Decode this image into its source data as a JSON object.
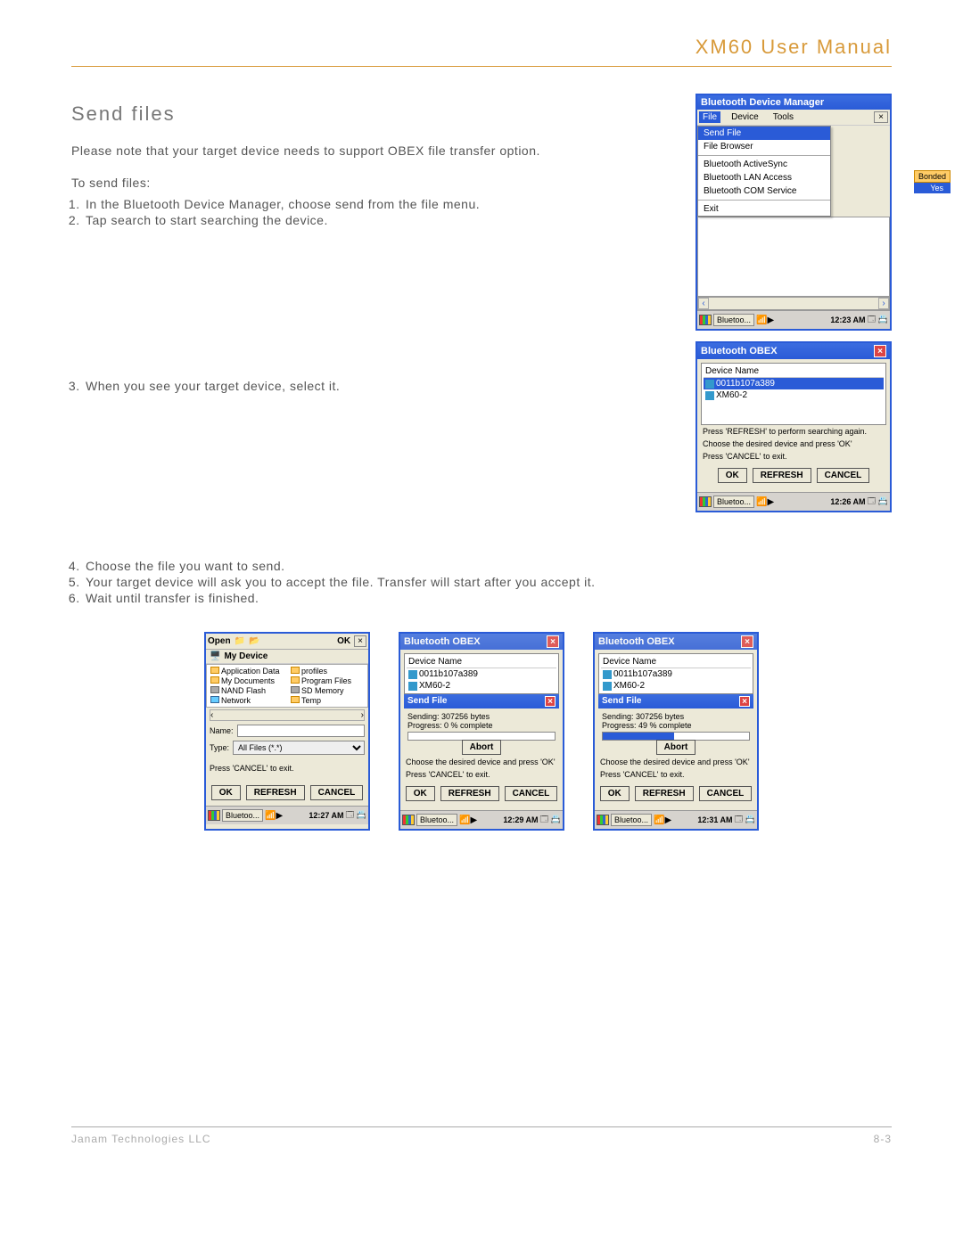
{
  "header": {
    "title": "XM60 User Manual"
  },
  "section": {
    "title": "Send files",
    "intro": "Please note that your target device needs to support OBEX file transfer option.",
    "to_send": "To send files:",
    "steps_a": [
      "In the Bluetooth Device Manager, choose send from the file menu.",
      "Tap search to start searching the device."
    ],
    "step3": "When you see your target device, select it.",
    "steps_b": [
      "Choose the file you want to send.",
      "Your target device will ask you to accept the file. Transfer will start after you accept it.",
      "Wait until transfer is finished."
    ]
  },
  "shot1": {
    "title": "Bluetooth Device Manager",
    "menus": [
      "File",
      "Device",
      "Tools"
    ],
    "file_items": [
      "Send File",
      "File Browser",
      "",
      "Bluetooth ActiveSync",
      "Bluetooth LAN Access",
      "Bluetooth COM Service",
      "",
      "Exit"
    ],
    "badge": [
      "Bonded",
      "Yes"
    ],
    "taskbar": {
      "app": "Bluetoo...",
      "time": "12:23 AM"
    }
  },
  "shot2": {
    "title": "Bluetooth OBEX",
    "header": "Device Name",
    "devices": [
      "0011b107a389",
      "XM60-2"
    ],
    "hints": [
      "Press 'REFRESH' to perform searching again.",
      "Choose the desired device and press 'OK'",
      "Press 'CANCEL' to exit."
    ],
    "buttons": [
      "OK",
      "REFRESH",
      "CANCEL"
    ],
    "taskbar": {
      "app": "Bluetoo...",
      "time": "12:26 AM"
    }
  },
  "shot3": {
    "open": "Open",
    "ok": "OK",
    "mydevice": "My Device",
    "folders": [
      [
        "Application Data",
        "fld"
      ],
      [
        "profiles",
        "fld"
      ],
      [
        "My Documents",
        "fld"
      ],
      [
        "Program Files",
        "fld"
      ],
      [
        "NAND Flash",
        "sd"
      ],
      [
        "SD Memory",
        "sd"
      ],
      [
        "Network",
        "net"
      ],
      [
        "Temp",
        "fld"
      ]
    ],
    "name_lbl": "Name:",
    "type_lbl": "Type:",
    "type_val": "All Files (*.*)",
    "hint": "Press 'CANCEL' to exit.",
    "buttons": [
      "OK",
      "REFRESH",
      "CANCEL"
    ],
    "taskbar": {
      "app": "Bluetoo...",
      "time": "12:27 AM"
    }
  },
  "shot4": {
    "title": "Bluetooth OBEX",
    "header": "Device Name",
    "devices": [
      "0011b107a389",
      "XM60-2"
    ],
    "sf_title": "Send File",
    "sending": "Sending: 307256 bytes",
    "progress": "Progress: 0 % complete",
    "progress_pct": 0,
    "abort": "Abort",
    "hint1": "Choose the desired device and press 'OK'",
    "hint2": "Press 'CANCEL' to exit.",
    "buttons": [
      "OK",
      "REFRESH",
      "CANCEL"
    ],
    "taskbar": {
      "app": "Bluetoo...",
      "time": "12:29 AM"
    }
  },
  "shot5": {
    "title": "Bluetooth OBEX",
    "header": "Device Name",
    "devices": [
      "0011b107a389",
      "XM60-2"
    ],
    "sf_title": "Send File",
    "sending": "Sending: 307256 bytes",
    "progress": "Progress: 49 % complete",
    "progress_pct": 49,
    "abort": "Abort",
    "hint1": "Choose the desired device and press 'OK'",
    "hint2": "Press 'CANCEL' to exit.",
    "buttons": [
      "OK",
      "REFRESH",
      "CANCEL"
    ],
    "taskbar": {
      "app": "Bluetoo...",
      "time": "12:31 AM"
    }
  },
  "footer": {
    "company": "Janam Technologies LLC",
    "page": "8-3"
  }
}
